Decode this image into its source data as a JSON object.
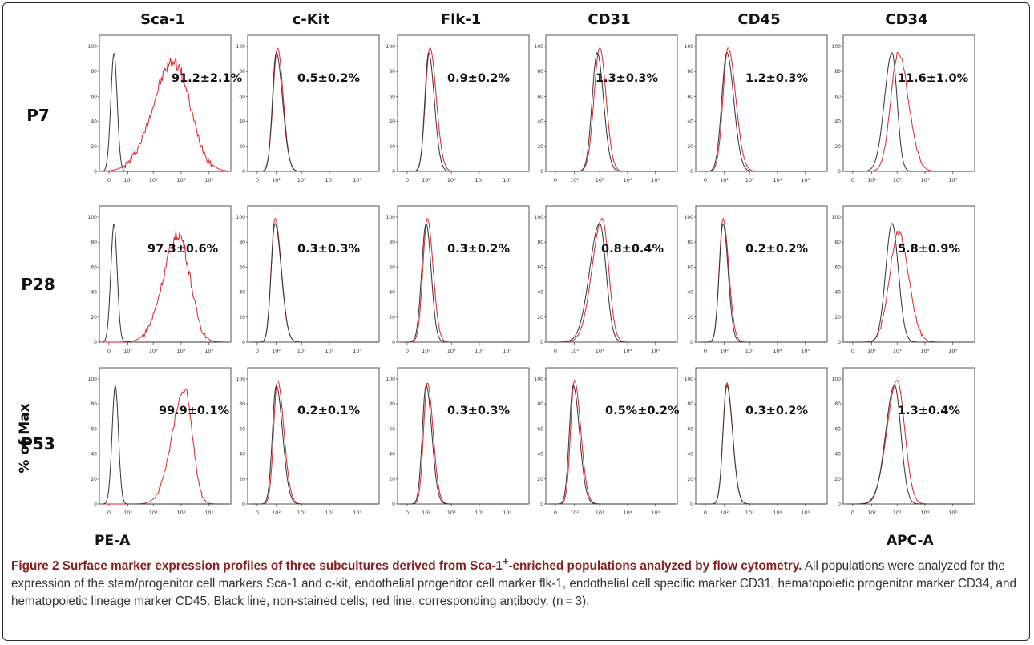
{
  "figure": {
    "caption_title_part1": "Figure 2 Surface marker expression profiles of three subcultures derived from Sca-1",
    "caption_title_sup": "+",
    "caption_title_part2": "-enriched populations analyzed by flow cytometry.",
    "caption_body": " All populations were analyzed for the expression of the stem/progenitor cell markers Sca-1 and c-kit, endothelial progenitor cell marker flk-1, endothelial cell specific marker CD31, hematopoietic progenitor marker CD34, and hematopoietic lineage marker CD45. Black line, non-stained cells; red line, corresponding antibody. (n = 3).",
    "ylabel": "% of Max",
    "xlabel_left": "PE-A",
    "xlabel_right": "APC-A",
    "colors": {
      "control": "#333333",
      "stained": "#e8202a"
    }
  },
  "chart_data": {
    "type": "line",
    "columns": [
      "Sca-1",
      "c-Kit",
      "Flk-1",
      "CD31",
      "CD45",
      "CD34"
    ],
    "rows": [
      "P7",
      "P28",
      "P53"
    ],
    "y_ticks": [
      "0",
      "20",
      "40",
      "60",
      "80",
      "100"
    ],
    "x_ticks": [
      "0",
      "10²",
      "10³",
      "10⁴",
      "10⁵"
    ],
    "ylim": [
      0,
      100
    ],
    "percentages": [
      [
        "91.2±2.1%",
        "0.5±0.2%",
        "0.9±0.2%",
        "1.3±0.3%",
        "1.2±0.3%",
        "11.6±1.0%"
      ],
      [
        "97.3±0.6%",
        "0.3±0.3%",
        "0.3±0.2%",
        "0.8±0.4%",
        "0.2±0.2%",
        "5.8±0.9%"
      ],
      [
        "99.9±0.1%",
        "0.2±0.1%",
        "0.3±0.3%",
        "0.5%±0.2%",
        "0.3±0.2%",
        "1.3±0.4%"
      ]
    ],
    "series": [
      {
        "name": "Black line, non-stained cells"
      },
      {
        "name": "red line, corresponding antibody"
      }
    ]
  }
}
